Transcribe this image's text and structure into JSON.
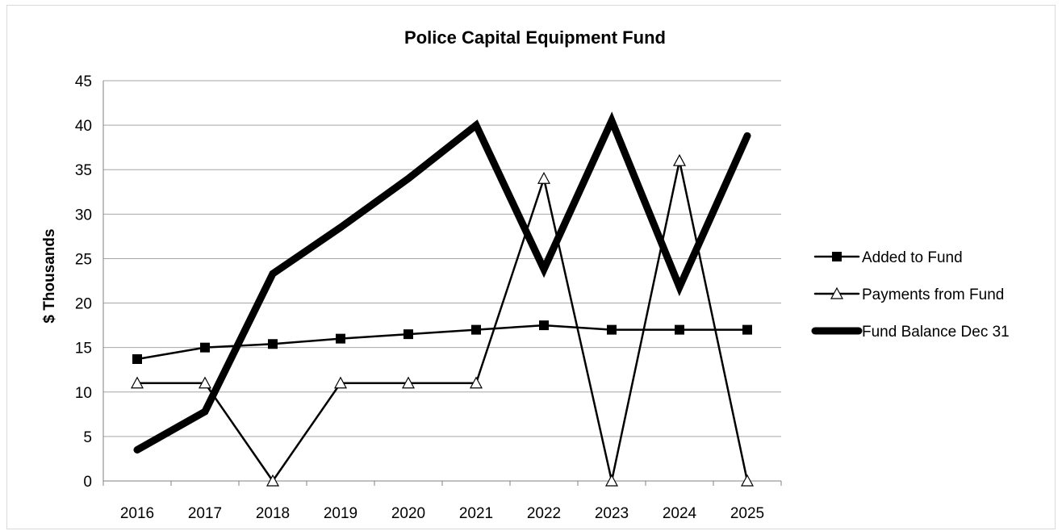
{
  "chart_data": {
    "type": "line",
    "title": "Police Capital Equipment Fund",
    "ylabel": "$ Thousands",
    "xlabel": "",
    "x": [
      "2016",
      "2017",
      "2018",
      "2019",
      "2020",
      "2021",
      "2022",
      "2023",
      "2024",
      "2025"
    ],
    "ylim": [
      0,
      45
    ],
    "yticks": [
      0,
      5,
      10,
      15,
      20,
      25,
      30,
      35,
      40,
      45
    ],
    "grid": true,
    "legend_position": "right",
    "series": [
      {
        "name": "Added to Fund",
        "values": [
          13.7,
          15.0,
          15.4,
          16.0,
          16.5,
          17.0,
          17.5,
          17.0,
          17.0,
          17.0
        ],
        "marker": "square",
        "color": "#000000"
      },
      {
        "name": "Payments from Fund",
        "values": [
          11,
          11,
          0,
          11,
          11,
          11,
          34,
          0,
          36,
          0
        ],
        "marker": "triangle",
        "color": "#000000"
      },
      {
        "name": "Fund Balance Dec 31",
        "values": [
          3.5,
          7.8,
          23.3,
          28.5,
          34.0,
          40.0,
          23.8,
          40.5,
          21.8,
          38.8
        ],
        "marker": "none",
        "color": "#000000"
      }
    ]
  }
}
